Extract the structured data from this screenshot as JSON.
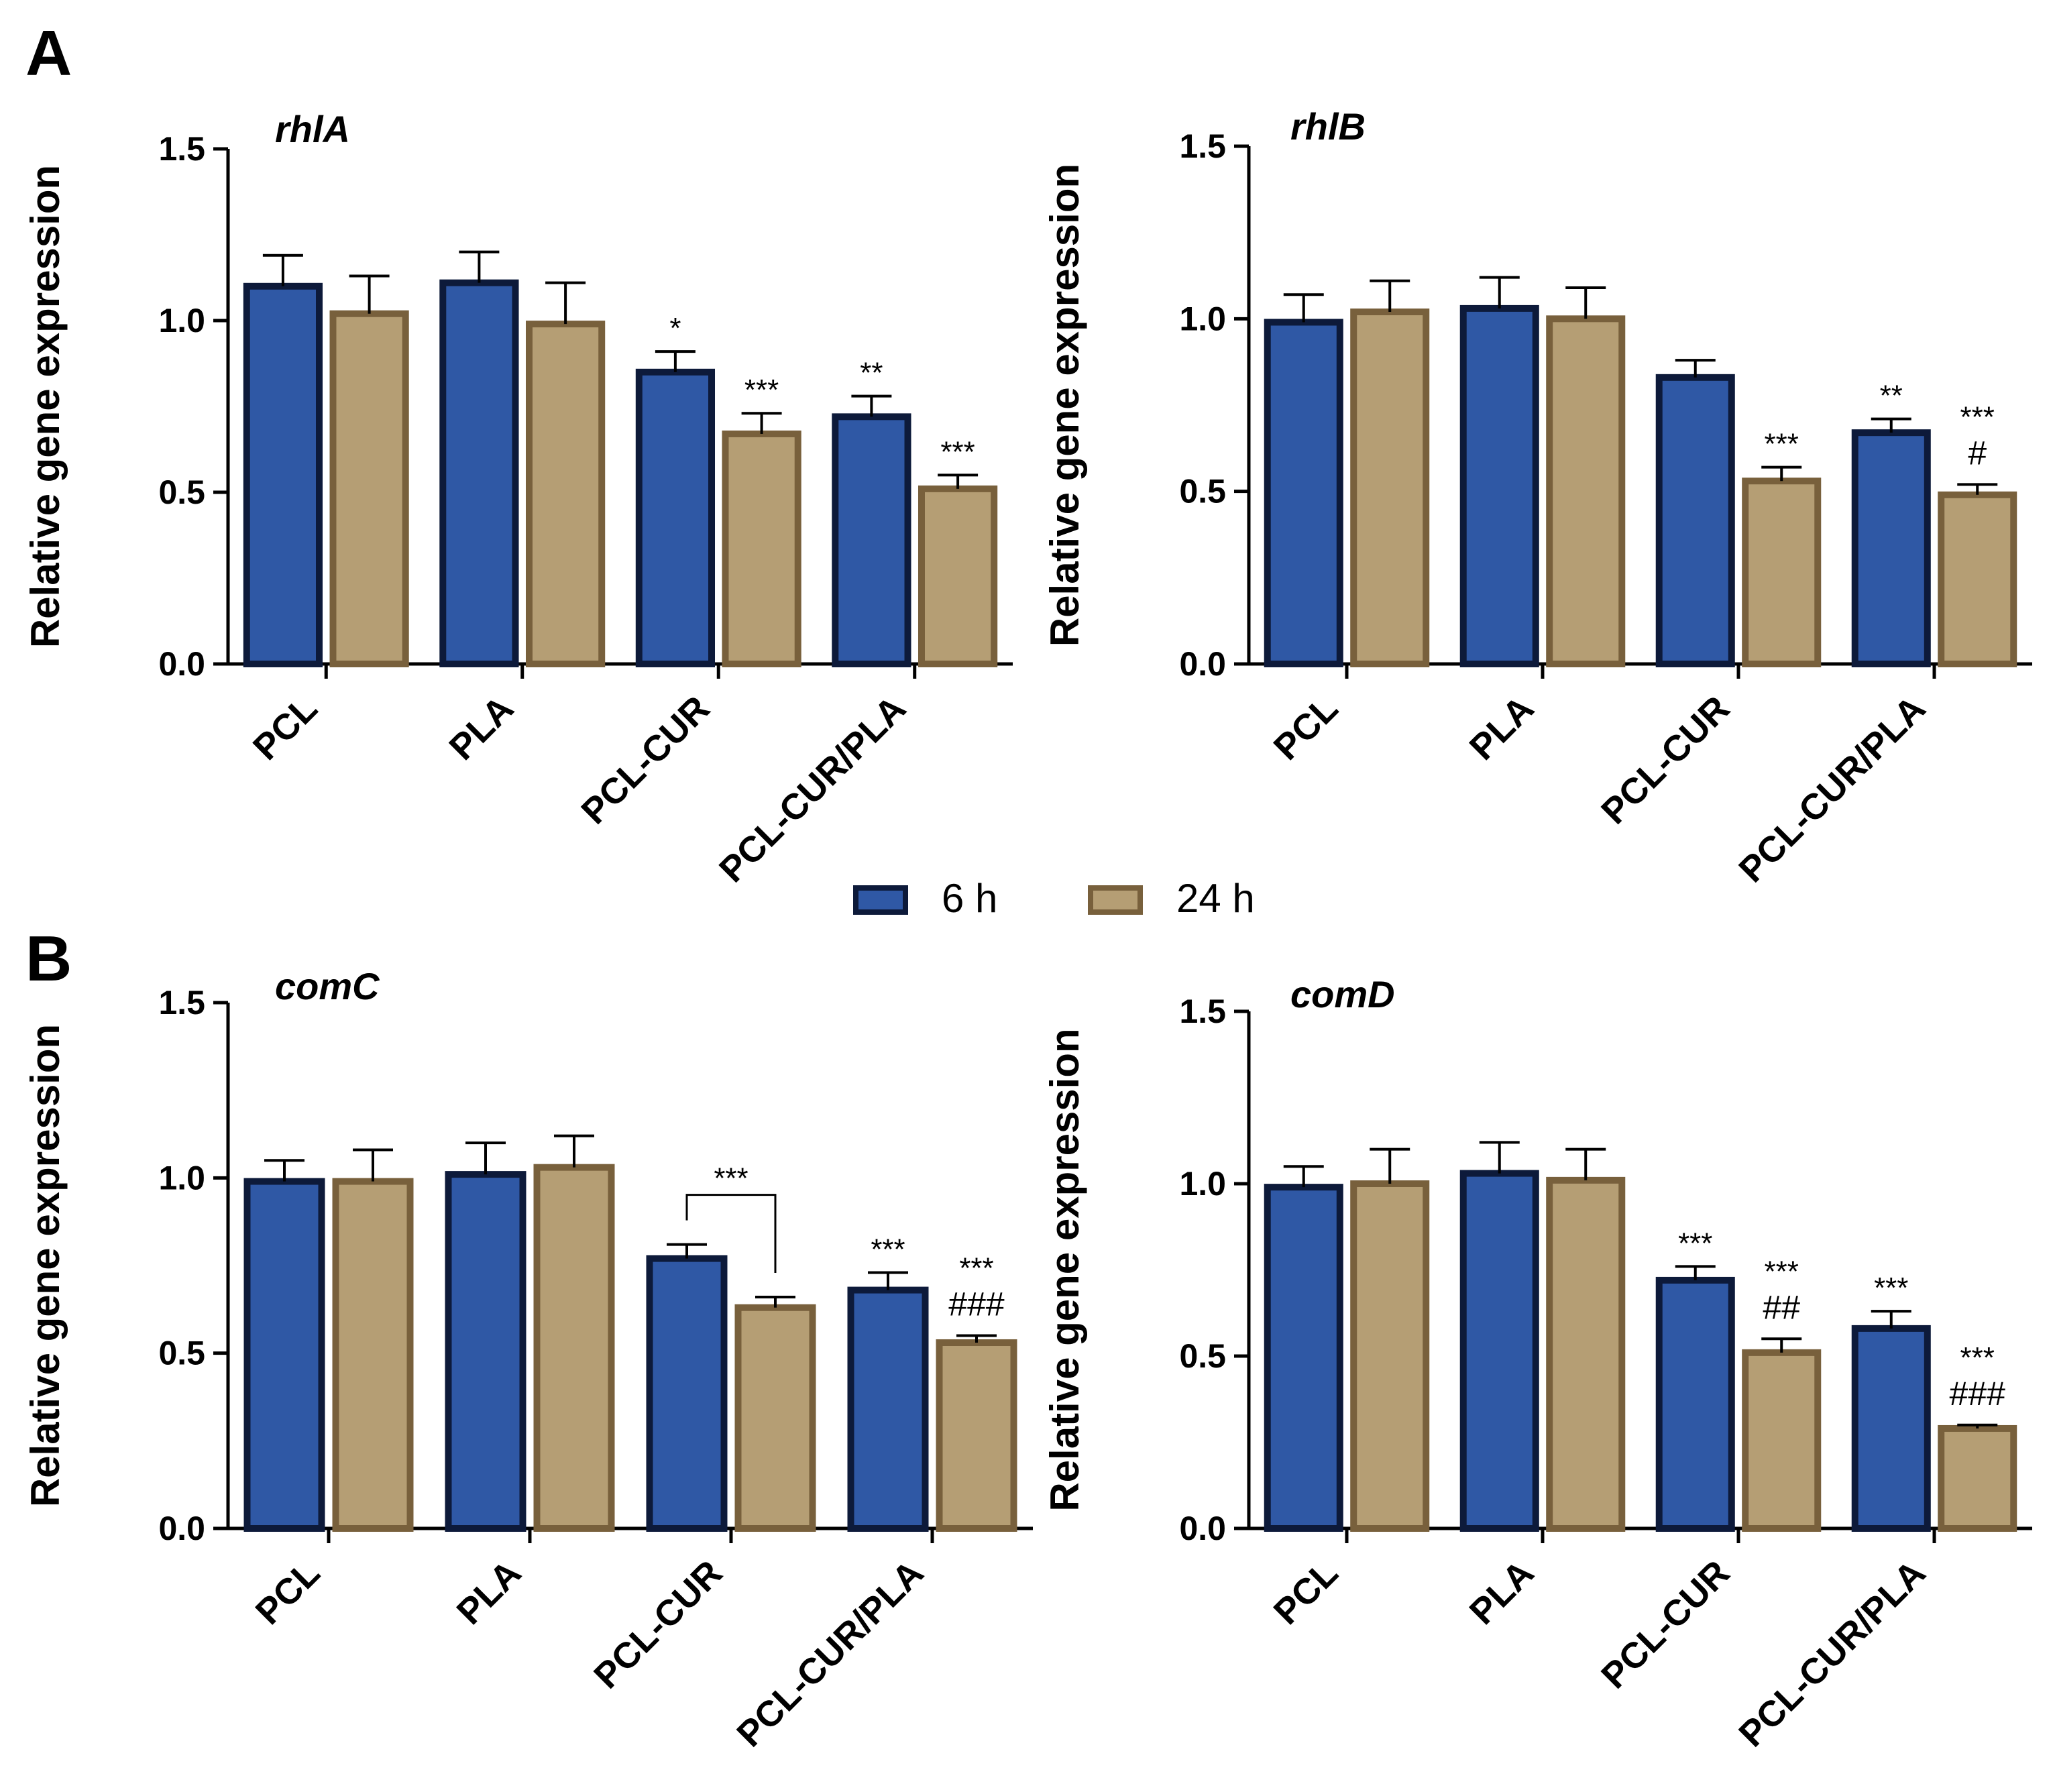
{
  "legend": [
    {
      "label": "6 h",
      "fill": "#2f58a5",
      "stroke": "#0d1a3a"
    },
    {
      "label": "24 h",
      "fill": "#b59e74",
      "stroke": "#78603c"
    }
  ],
  "chart_data": [
    {
      "panel": "A",
      "title": "rhlA",
      "type": "bar",
      "ylabel": "Relative gene expression",
      "ylim": [
        0,
        1.5
      ],
      "yticks": [
        "0.0",
        "0.5",
        "1.0",
        "1.5"
      ],
      "categories": [
        "PCL",
        "PLA",
        "PCL-CUR",
        "PCL-CUR/PLA"
      ],
      "series": [
        {
          "name": "6 h",
          "values": [
            1.1,
            1.11,
            0.85,
            0.72
          ],
          "errors": [
            0.09,
            0.09,
            0.06,
            0.06
          ]
        },
        {
          "name": "24 h",
          "values": [
            1.02,
            0.99,
            0.67,
            0.51
          ],
          "errors": [
            0.11,
            0.12,
            0.06,
            0.04
          ]
        }
      ],
      "annotations": [
        {
          "cat": 2,
          "series": 0,
          "lines": [
            "*"
          ]
        },
        {
          "cat": 2,
          "series": 1,
          "lines": [
            "***"
          ]
        },
        {
          "cat": 3,
          "series": 0,
          "lines": [
            "**"
          ]
        },
        {
          "cat": 3,
          "series": 1,
          "lines": [
            "***"
          ]
        }
      ]
    },
    {
      "panel": "",
      "title": "rhlB",
      "type": "bar",
      "ylabel": "Relative gene expression",
      "ylim": [
        0,
        1.5
      ],
      "yticks": [
        "0.0",
        "0.5",
        "1.0",
        "1.5"
      ],
      "categories": [
        "PCL",
        "PLA",
        "PCL-CUR",
        "PCL-CUR/PLA"
      ],
      "series": [
        {
          "name": "6 h",
          "values": [
            0.99,
            1.03,
            0.83,
            0.67
          ],
          "errors": [
            0.08,
            0.09,
            0.05,
            0.04
          ]
        },
        {
          "name": "24 h",
          "values": [
            1.02,
            1.0,
            0.53,
            0.49
          ],
          "errors": [
            0.09,
            0.09,
            0.04,
            0.03
          ]
        }
      ],
      "annotations": [
        {
          "cat": 2,
          "series": 1,
          "lines": [
            "***"
          ]
        },
        {
          "cat": 3,
          "series": 0,
          "lines": [
            "**"
          ]
        },
        {
          "cat": 3,
          "series": 1,
          "lines": [
            "***",
            "#"
          ]
        }
      ]
    },
    {
      "panel": "B",
      "title": "comC",
      "type": "bar",
      "ylabel": "Relative gene expression",
      "ylim": [
        0,
        1.5
      ],
      "yticks": [
        "0.0",
        "0.5",
        "1.0",
        "1.5"
      ],
      "categories": [
        "PCL",
        "PLA",
        "PCL-CUR",
        "PCL-CUR/PLA"
      ],
      "series": [
        {
          "name": "6 h",
          "values": [
            0.99,
            1.01,
            0.77,
            0.68
          ],
          "errors": [
            0.06,
            0.09,
            0.04,
            0.05
          ]
        },
        {
          "name": "24 h",
          "values": [
            0.99,
            1.03,
            0.63,
            0.53
          ],
          "errors": [
            0.09,
            0.09,
            0.03,
            0.02
          ]
        }
      ],
      "annotations": [
        {
          "cat": 3,
          "series": 0,
          "lines": [
            "***"
          ]
        },
        {
          "cat": 3,
          "series": 1,
          "lines": [
            "***",
            "###"
          ]
        }
      ],
      "brackets": [
        {
          "cat": 2,
          "label": "***"
        }
      ]
    },
    {
      "panel": "",
      "title": "comD",
      "type": "bar",
      "ylabel": "Relative gene expression",
      "ylim": [
        0,
        1.5
      ],
      "yticks": [
        "0.0",
        "0.5",
        "1.0",
        "1.5"
      ],
      "categories": [
        "PCL",
        "PLA",
        "PCL-CUR",
        "PCL-CUR/PLA"
      ],
      "series": [
        {
          "name": "6 h",
          "values": [
            0.99,
            1.03,
            0.72,
            0.58
          ],
          "errors": [
            0.06,
            0.09,
            0.04,
            0.05
          ]
        },
        {
          "name": "24 h",
          "values": [
            1.0,
            1.01,
            0.51,
            0.29
          ],
          "errors": [
            0.1,
            0.09,
            0.04,
            0.01
          ]
        }
      ],
      "annotations": [
        {
          "cat": 2,
          "series": 0,
          "lines": [
            "***"
          ]
        },
        {
          "cat": 2,
          "series": 1,
          "lines": [
            "***",
            "##"
          ]
        },
        {
          "cat": 3,
          "series": 0,
          "lines": [
            "***"
          ]
        },
        {
          "cat": 3,
          "series": 1,
          "lines": [
            "***",
            "###"
          ]
        }
      ]
    }
  ]
}
